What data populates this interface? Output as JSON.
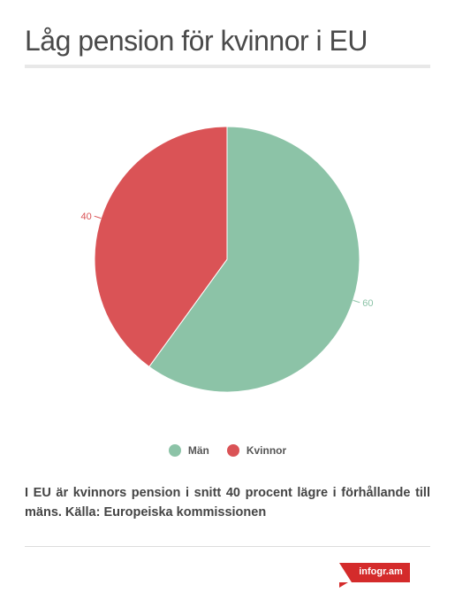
{
  "title": "Låg pension för kvinnor i EU",
  "caption": "I EU är kvinnors pension i snitt 40 procent lägre i förhållande till mäns. Källa: Europeiska kommissionen",
  "brand": "infogr.am",
  "chart_data": {
    "type": "pie",
    "title": "Låg pension för kvinnor i EU",
    "categories": [
      "Män",
      "Kvinnor"
    ],
    "values": [
      60,
      40
    ],
    "colors": [
      "#8cc3a7",
      "#da5356"
    ],
    "data_labels": [
      "60",
      "40"
    ],
    "legend_position": "bottom",
    "start_angle": "12 o'clock, clockwise"
  },
  "legend": {
    "items": [
      {
        "label": "Män",
        "color": "#8cc3a7"
      },
      {
        "label": "Kvinnor",
        "color": "#da5356"
      }
    ]
  }
}
